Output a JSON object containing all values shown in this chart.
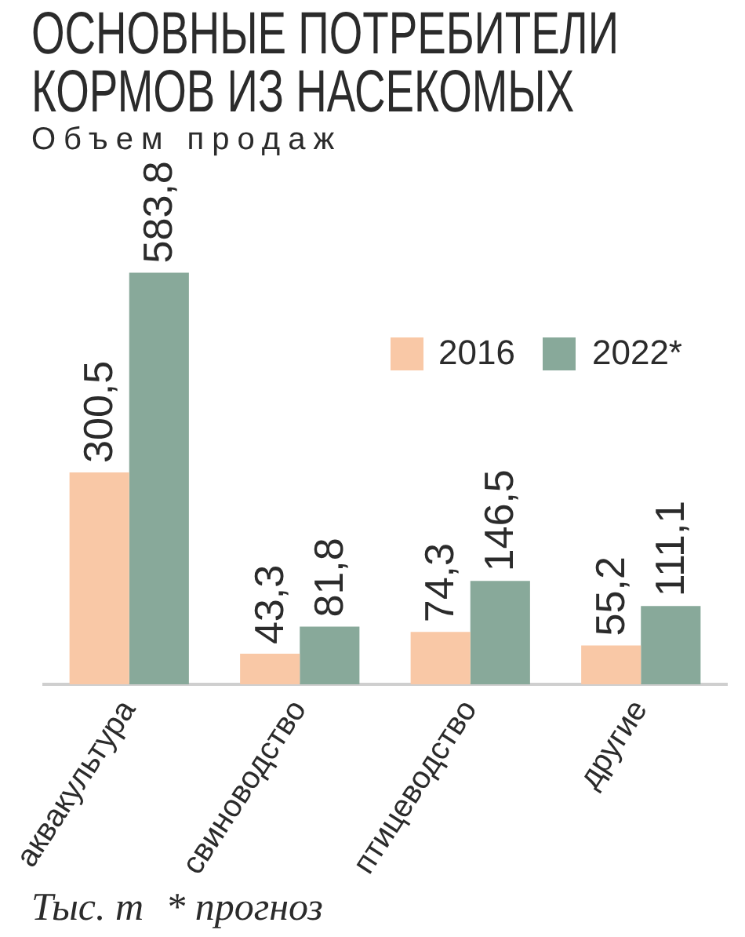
{
  "chart_data": {
    "type": "bar",
    "title": "ОСНОВНЫЕ ПОТРЕБИТЕЛИ КОРМОВ ИЗ НАСЕКОМЫХ",
    "subtitle": "Объем продаж",
    "annotations": [
      "Тыс. т",
      "* прогноз"
    ],
    "categories": [
      "аквакультура",
      "свиноводство",
      "птицеводство",
      "другие"
    ],
    "series": [
      {
        "name": "2016",
        "color": "#f9c8a6",
        "values": [
          300.5,
          43.3,
          74.3,
          55.2
        ],
        "value_labels": [
          "300,5",
          "43,3",
          "74,3",
          "55,2"
        ]
      },
      {
        "name": "2022*",
        "color": "#88a99a",
        "values": [
          583.8,
          81.8,
          146.5,
          111.1
        ],
        "value_labels": [
          "583,8",
          "81,8",
          "146,5",
          "111,1"
        ]
      }
    ],
    "legend": "top right"
  }
}
